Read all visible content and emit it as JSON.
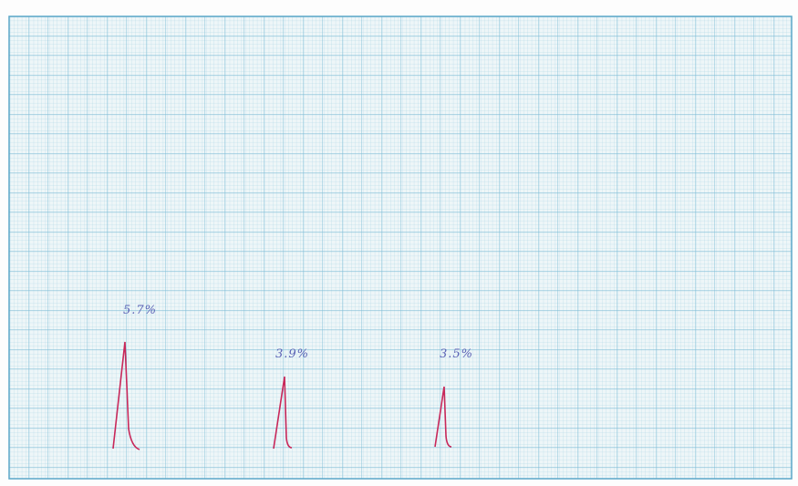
{
  "annotations": [
    "5.7%",
    "3.9%",
    "3.5%"
  ]
}
